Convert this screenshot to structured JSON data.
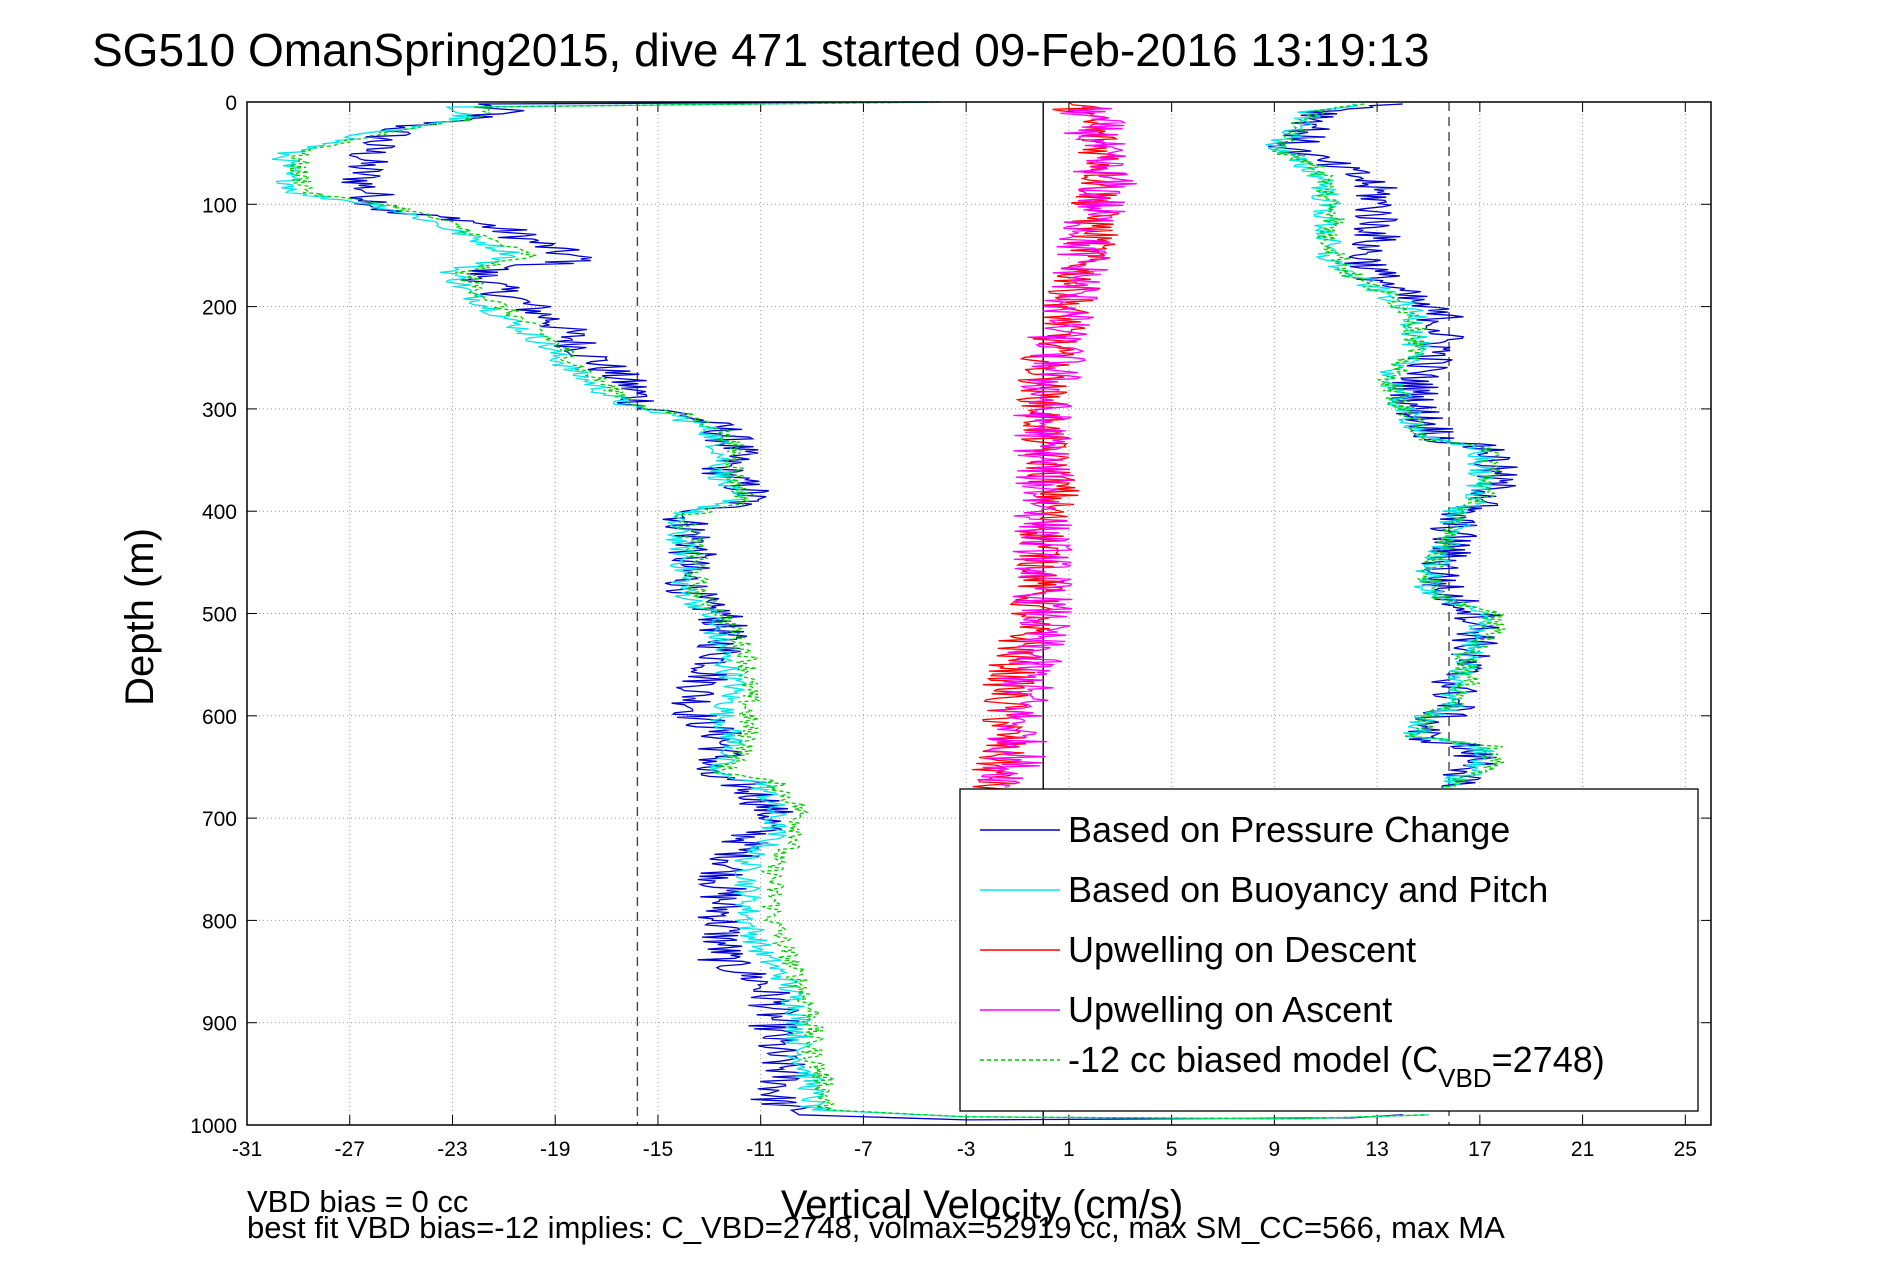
{
  "chart_data": {
    "type": "line",
    "title": "SG510 OmanSpring2015, dive 471 started 09-Feb-2016 13:19:13",
    "xlabel": "Vertical Velocity (cm/s)",
    "ylabel": "Depth (m)",
    "xlim": [
      -31,
      26
    ],
    "ylim": [
      0,
      1000
    ],
    "y_reversed": true,
    "grid": true,
    "x_ticks": [
      -31,
      -27,
      -23,
      -19,
      -15,
      -11,
      -7,
      -3,
      1,
      5,
      9,
      13,
      17,
      21,
      25
    ],
    "y_ticks": [
      0,
      100,
      200,
      300,
      400,
      500,
      600,
      700,
      800,
      900,
      1000
    ],
    "reference_lines": [
      {
        "x": 0,
        "style": "solid"
      },
      {
        "x": -15.8,
        "style": "dashed"
      },
      {
        "x": 15.8,
        "style": "dashed"
      }
    ],
    "legend_position": "bottom-right",
    "legend": [
      {
        "label": "Based on Pressure Change",
        "color": "#0000cc"
      },
      {
        "label": "Based on Buoyancy and Pitch",
        "color": "#00e5e5"
      },
      {
        "label": "Upwelling on Descent",
        "color": "#ff0000"
      },
      {
        "label": "Upwelling on Ascent",
        "color": "#ff00ff"
      },
      {
        "label": "-12 cc biased model (C",
        "sub": "VBD",
        "suffix": "=2748)",
        "color": "#00cc00",
        "dashed": true
      }
    ],
    "series": [
      {
        "name": "Based on Pressure Change",
        "color": "#0000cc",
        "jitter": 1.0,
        "points": [
          [
            -4.5,
            0
          ],
          [
            -22,
            2
          ],
          [
            -21,
            10
          ],
          [
            -25,
            25
          ],
          [
            -26,
            40
          ],
          [
            -26.5,
            60
          ],
          [
            -26.5,
            80
          ],
          [
            -26,
            95
          ],
          [
            -25.5,
            108
          ],
          [
            -22.5,
            115
          ],
          [
            -21,
            125
          ],
          [
            -19.5,
            140
          ],
          [
            -18,
            155
          ],
          [
            -22,
            165
          ],
          [
            -21.5,
            180
          ],
          [
            -20,
            200
          ],
          [
            -19,
            215
          ],
          [
            -18,
            240
          ],
          [
            -17,
            260
          ],
          [
            -16,
            280
          ],
          [
            -15.5,
            300
          ],
          [
            -14,
            305
          ],
          [
            -12.5,
            320
          ],
          [
            -12,
            340
          ],
          [
            -12.5,
            360
          ],
          [
            -11.5,
            380
          ],
          [
            -11.5,
            390
          ],
          [
            -14,
            405
          ],
          [
            -13.5,
            430
          ],
          [
            -14,
            460
          ],
          [
            -13.5,
            490
          ],
          [
            -12.5,
            500
          ],
          [
            -12.5,
            540
          ],
          [
            -13,
            560
          ],
          [
            -13.5,
            580
          ],
          [
            -13.5,
            600
          ],
          [
            -12.5,
            620
          ],
          [
            -12.5,
            640
          ],
          [
            -13.5,
            655
          ],
          [
            -12,
            665
          ],
          [
            -11,
            680
          ],
          [
            -10.5,
            700
          ],
          [
            -11.5,
            720
          ],
          [
            -12,
            740
          ],
          [
            -12.5,
            760
          ],
          [
            -12.5,
            780
          ],
          [
            -12.5,
            800
          ],
          [
            -12.5,
            840
          ],
          [
            -11,
            860
          ],
          [
            -10.5,
            880
          ],
          [
            -10.5,
            900
          ],
          [
            -10.5,
            930
          ],
          [
            -10,
            950
          ],
          [
            -10.5,
            975
          ],
          [
            -9.5,
            990
          ],
          [
            -3,
            995
          ],
          [
            12,
            993
          ],
          [
            14,
            990
          ]
        ]
      },
      {
        "name": "Based on Buoyancy and Pitch",
        "color": "#00e5e5",
        "jitter": 0.55,
        "points": [
          [
            -4,
            0
          ],
          [
            -23,
            5
          ],
          [
            -22.5,
            15
          ],
          [
            -26,
            30
          ],
          [
            -29.5,
            50
          ],
          [
            -29.5,
            70
          ],
          [
            -29,
            90
          ],
          [
            -26,
            100
          ],
          [
            -24,
            115
          ],
          [
            -22.5,
            130
          ],
          [
            -20.5,
            150
          ],
          [
            -23,
            165
          ],
          [
            -22.5,
            185
          ],
          [
            -21,
            210
          ],
          [
            -19.5,
            235
          ],
          [
            -18.5,
            260
          ],
          [
            -17,
            285
          ],
          [
            -16,
            300
          ],
          [
            -14.5,
            305
          ],
          [
            -13,
            320
          ],
          [
            -12.5,
            340
          ],
          [
            -12.5,
            370
          ],
          [
            -12,
            390
          ],
          [
            -14.5,
            405
          ],
          [
            -14,
            440
          ],
          [
            -14,
            480
          ],
          [
            -13,
            500
          ],
          [
            -12.5,
            540
          ],
          [
            -12,
            570
          ],
          [
            -12.5,
            600
          ],
          [
            -12,
            630
          ],
          [
            -13,
            655
          ],
          [
            -11,
            665
          ],
          [
            -10.5,
            690
          ],
          [
            -10.5,
            720
          ],
          [
            -11.5,
            740
          ],
          [
            -11.5,
            770
          ],
          [
            -11.5,
            800
          ],
          [
            -11,
            830
          ],
          [
            -10,
            860
          ],
          [
            -9.5,
            890
          ],
          [
            -9.5,
            930
          ],
          [
            -9,
            960
          ],
          [
            -9,
            985
          ],
          [
            -3,
            992
          ],
          [
            10,
            994
          ],
          [
            15,
            990
          ]
        ]
      },
      {
        "name": "-12 cc biased model",
        "color": "#00cc00",
        "dashed": true,
        "jitter": 0.45,
        "points": [
          [
            -4,
            0
          ],
          [
            -22,
            5
          ],
          [
            -22,
            15
          ],
          [
            -25.5,
            30
          ],
          [
            -29,
            50
          ],
          [
            -29,
            70
          ],
          [
            -28.5,
            90
          ],
          [
            -25.5,
            100
          ],
          [
            -23.5,
            115
          ],
          [
            -22,
            130
          ],
          [
            -20,
            150
          ],
          [
            -22.5,
            165
          ],
          [
            -22,
            185
          ],
          [
            -20.5,
            210
          ],
          [
            -19,
            235
          ],
          [
            -18,
            260
          ],
          [
            -16.5,
            285
          ],
          [
            -15.5,
            300
          ],
          [
            -14,
            305
          ],
          [
            -12.5,
            320
          ],
          [
            -12,
            340
          ],
          [
            -12,
            370
          ],
          [
            -11.5,
            390
          ],
          [
            -14,
            405
          ],
          [
            -13.5,
            440
          ],
          [
            -13.5,
            480
          ],
          [
            -12.5,
            500
          ],
          [
            -11.5,
            540
          ],
          [
            -11.5,
            570
          ],
          [
            -11.5,
            600
          ],
          [
            -11.5,
            630
          ],
          [
            -12.5,
            655
          ],
          [
            -10.5,
            665
          ],
          [
            -9.5,
            690
          ],
          [
            -9.5,
            720
          ],
          [
            -10.5,
            740
          ],
          [
            -10.5,
            770
          ],
          [
            -10.5,
            800
          ],
          [
            -10,
            830
          ],
          [
            -9.5,
            860
          ],
          [
            -9,
            890
          ],
          [
            -9,
            930
          ],
          [
            -8.5,
            960
          ],
          [
            -8.5,
            985
          ],
          [
            -3,
            992
          ],
          [
            10,
            994
          ],
          [
            15,
            990
          ]
        ]
      },
      {
        "name": "Upwelling on Descent",
        "color": "#ff0000",
        "jitter": 1.0,
        "points": [
          [
            1,
            0
          ],
          [
            1.5,
            10
          ],
          [
            2,
            30
          ],
          [
            2.5,
            60
          ],
          [
            2,
            100
          ],
          [
            2,
            130
          ],
          [
            1.5,
            160
          ],
          [
            1,
            200
          ],
          [
            0.5,
            230
          ],
          [
            0,
            260
          ],
          [
            0,
            300
          ],
          [
            0,
            340
          ],
          [
            0.5,
            380
          ],
          [
            0,
            420
          ],
          [
            0,
            460
          ],
          [
            -0.5,
            500
          ],
          [
            -1,
            540
          ],
          [
            -1.5,
            580
          ],
          [
            -1.5,
            620
          ],
          [
            -2,
            660
          ],
          [
            -2,
            680
          ]
        ]
      },
      {
        "name": "Upwelling on Ascent",
        "color": "#ff00ff",
        "jitter": 1.2,
        "points": [
          [
            1.5,
            5
          ],
          [
            2,
            20
          ],
          [
            2,
            50
          ],
          [
            2.5,
            80
          ],
          [
            2,
            110
          ],
          [
            1.5,
            140
          ],
          [
            1.5,
            170
          ],
          [
            1,
            200
          ],
          [
            0.5,
            230
          ],
          [
            0.5,
            260
          ],
          [
            0,
            290
          ],
          [
            0,
            320
          ],
          [
            0,
            350
          ],
          [
            0,
            400
          ],
          [
            0,
            450
          ],
          [
            0,
            500
          ],
          [
            -0.5,
            550
          ],
          [
            -1,
            600
          ],
          [
            -1,
            640
          ],
          [
            -1.5,
            670
          ]
        ]
      },
      {
        "name": "Ascent pressure",
        "color": "#0000cc",
        "jitter": 1.0,
        "points": [
          [
            14,
            2
          ],
          [
            11,
            10
          ],
          [
            10.5,
            25
          ],
          [
            9.5,
            45
          ],
          [
            11,
            60
          ],
          [
            12.5,
            75
          ],
          [
            13,
            90
          ],
          [
            13,
            110
          ],
          [
            13,
            130
          ],
          [
            12.5,
            150
          ],
          [
            13,
            170
          ],
          [
            14,
            190
          ],
          [
            15.5,
            210
          ],
          [
            15.5,
            240
          ],
          [
            14.5,
            270
          ],
          [
            14.5,
            300
          ],
          [
            15.5,
            330
          ],
          [
            17.5,
            340
          ],
          [
            17.5,
            360
          ],
          [
            17.5,
            390
          ],
          [
            16,
            400
          ],
          [
            16,
            420
          ],
          [
            15.5,
            460
          ],
          [
            15.5,
            480
          ],
          [
            17,
            500
          ],
          [
            17,
            520
          ],
          [
            16.5,
            540
          ],
          [
            16,
            570
          ],
          [
            16,
            590
          ],
          [
            15.5,
            600
          ],
          [
            14.5,
            620
          ],
          [
            16.5,
            630
          ],
          [
            17,
            650
          ],
          [
            15.5,
            670
          ]
        ]
      },
      {
        "name": "Ascent buoyancy",
        "color": "#00e5e5",
        "jitter": 0.6,
        "points": [
          [
            12,
            2
          ],
          [
            10.5,
            10
          ],
          [
            10,
            25
          ],
          [
            9,
            45
          ],
          [
            10,
            60
          ],
          [
            11,
            75
          ],
          [
            11,
            90
          ],
          [
            11,
            110
          ],
          [
            11,
            130
          ],
          [
            11,
            150
          ],
          [
            12,
            170
          ],
          [
            13.5,
            190
          ],
          [
            14.5,
            210
          ],
          [
            14.5,
            240
          ],
          [
            13.5,
            270
          ],
          [
            14,
            300
          ],
          [
            15,
            330
          ],
          [
            17,
            340
          ],
          [
            17,
            360
          ],
          [
            17,
            390
          ],
          [
            16,
            400
          ],
          [
            16,
            420
          ],
          [
            15,
            460
          ],
          [
            15,
            480
          ],
          [
            17,
            500
          ],
          [
            17,
            520
          ],
          [
            16.5,
            540
          ],
          [
            16,
            570
          ],
          [
            16,
            590
          ],
          [
            15,
            600
          ],
          [
            14.5,
            620
          ],
          [
            17,
            630
          ],
          [
            17,
            650
          ],
          [
            15.5,
            670
          ]
        ]
      },
      {
        "name": "Ascent model",
        "color": "#00cc00",
        "dashed": true,
        "jitter": 0.5,
        "points": [
          [
            12.5,
            2
          ],
          [
            10.5,
            10
          ],
          [
            10,
            25
          ],
          [
            9,
            45
          ],
          [
            10.5,
            60
          ],
          [
            11,
            75
          ],
          [
            11,
            90
          ],
          [
            11.5,
            110
          ],
          [
            11,
            130
          ],
          [
            11.5,
            150
          ],
          [
            12,
            170
          ],
          [
            13.5,
            190
          ],
          [
            14.5,
            210
          ],
          [
            14.5,
            240
          ],
          [
            13.5,
            270
          ],
          [
            14,
            300
          ],
          [
            15,
            330
          ],
          [
            17.5,
            340
          ],
          [
            17.5,
            360
          ],
          [
            17,
            390
          ],
          [
            16,
            400
          ],
          [
            16,
            420
          ],
          [
            15,
            460
          ],
          [
            15,
            480
          ],
          [
            17.5,
            500
          ],
          [
            17.5,
            520
          ],
          [
            16.5,
            540
          ],
          [
            16.5,
            570
          ],
          [
            16,
            590
          ],
          [
            15,
            600
          ],
          [
            14.5,
            620
          ],
          [
            17.5,
            630
          ],
          [
            17.5,
            650
          ],
          [
            15.5,
            670
          ]
        ]
      }
    ]
  },
  "footer": {
    "line1": "VBD bias = 0 cc",
    "line2": "best fit VBD bias=-12 implies: C_VBD=2748, volmax=52919 cc, max SM_CC=566, max MA"
  }
}
